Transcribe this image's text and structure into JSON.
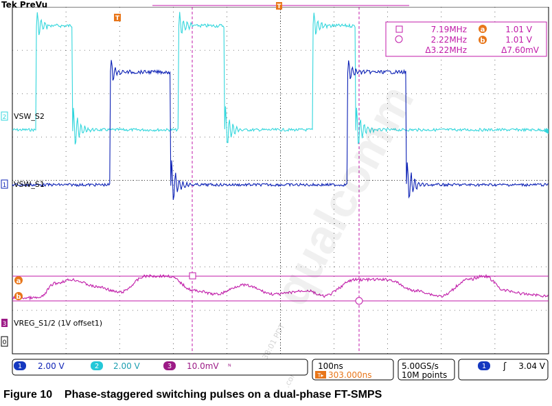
{
  "brand": "Tek PreVu",
  "caption": "Figure 10    Phase-staggered switching pulses on a dual-phase FT-SMPS",
  "colors": {
    "ch1": "#0a1fb4",
    "ch2": "#31d6dc",
    "ch3": "#c01aa8",
    "marker_orange": "#e8761a",
    "status_blue": "#1438c0",
    "status_cyan": "#25c8d8",
    "status_magenta": "#9c1a86",
    "cursor_line": "#c01aa8"
  },
  "measurements": {
    "freq_a": "7.19MHz",
    "freq_b": "2.22MHz",
    "delta_freq": "Δ3.22MHz",
    "volt_a": "1.01 V",
    "volt_b": "1.01 V",
    "delta_volt": "Δ7.60mV",
    "cursor_a_label": "a",
    "cursor_b_label": "b"
  },
  "channels": {
    "ch1": {
      "number": "1",
      "name": "VSW_S1",
      "scale": "2.00 V"
    },
    "ch2": {
      "number": "2",
      "name": "VSW_S2",
      "scale": "2.00 V"
    },
    "ch3": {
      "number": "3",
      "name": "VREG_S1/2 (1V offset1)",
      "scale": "10.0mV",
      "bw_symbol": "ᴺ"
    }
  },
  "markers": {
    "trigger_T": "T",
    "zero": "0",
    "cursor_a": "a",
    "cursor_b": "b"
  },
  "timebase": {
    "scale": "100ns",
    "position": "303.000ns",
    "position_icon": "T▸"
  },
  "acquisition": {
    "rate": "5.00GS/s",
    "record": "10M points"
  },
  "trigger": {
    "channel": "1",
    "slope": "ʃ",
    "level": "3.04 V"
  },
  "watermark": "qualcomm",
  "watermark_small": "01:38:01 PDT",
  "watermark_small2": ".com",
  "chart_data": {
    "type": "line",
    "title": "",
    "x_unit": "ns",
    "x_range_ns": [
      -200,
      800
    ],
    "time_per_div_ns": 100,
    "series": [
      {
        "name": "VSW_S1",
        "channel": 1,
        "unit": "V",
        "scale_per_div": "2.00 V",
        "high_level_V": 5.2,
        "low_level_V": 0,
        "high_intervals_ns": [
          [
            -17,
            95
          ],
          [
            425,
            535
          ]
        ],
        "ringing": "after each edge"
      },
      {
        "name": "VSW_S2",
        "channel": 2,
        "unit": "V",
        "scale_per_div": "2.00 V",
        "high_level_V": 4.8,
        "low_level_V": 0,
        "high_intervals_ns": [
          [
            -155,
            -88
          ],
          [
            110,
            195
          ],
          [
            360,
            440
          ]
        ],
        "ringing": "after each edge"
      },
      {
        "name": "VREG_S1/2 (1V offset1)",
        "channel": 3,
        "unit": "mV",
        "scale_per_div": "10.0mV",
        "description_points_ns": [
          -200,
          -150,
          -120,
          -90,
          -40,
          0,
          50,
          90,
          140,
          180,
          230,
          290,
          350,
          380,
          440,
          500,
          550,
          600,
          650,
          680,
          720,
          760,
          800
        ],
        "values_mV": [
          -4,
          -4,
          4,
          6,
          2,
          -1,
          8,
          8,
          0,
          -2,
          3,
          -2,
          0,
          -3,
          6,
          6,
          0,
          -3,
          6,
          8,
          0,
          -2,
          -3
        ]
      }
    ]
  }
}
